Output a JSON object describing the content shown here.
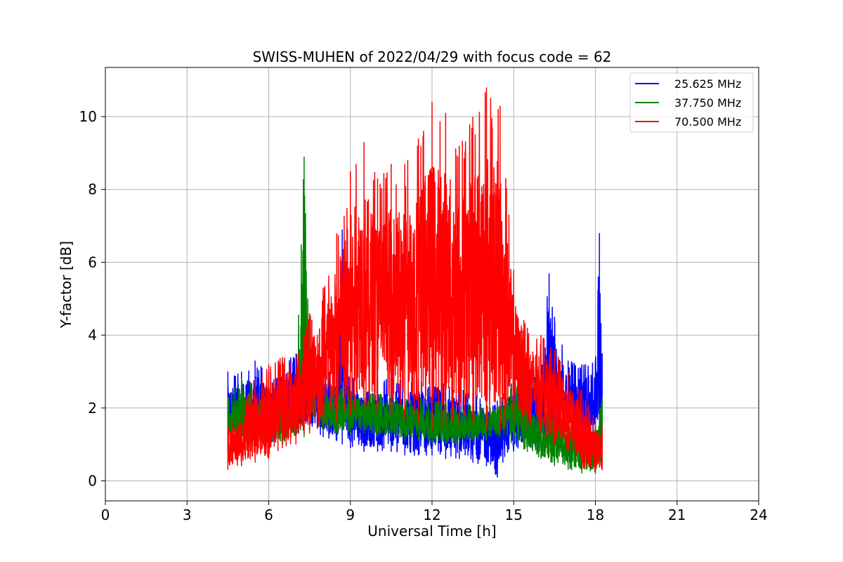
{
  "chart_data": {
    "type": "line",
    "title": "SWISS-MUHEN of 2022/04/29 with focus code = 62",
    "xlabel": "Universal Time [h]",
    "ylabel": "Y-factor [dB]",
    "xlim": [
      0,
      24
    ],
    "ylim": [
      -0.55,
      11.35
    ],
    "xticks": [
      0,
      3,
      6,
      9,
      12,
      15,
      18,
      21,
      24
    ],
    "yticks": [
      0,
      2,
      4,
      6,
      8,
      10
    ],
    "grid": true,
    "legend_position": "top-right",
    "series": [
      {
        "name": "25.625 MHz",
        "color": "#0000ff",
        "x": [
          4.5,
          5.0,
          5.5,
          6.0,
          6.5,
          7.0,
          7.3,
          7.5,
          8.0,
          8.5,
          8.7,
          9.0,
          9.5,
          10.0,
          10.5,
          11.0,
          11.5,
          12.0,
          12.5,
          13.0,
          13.5,
          14.0,
          14.4,
          14.6,
          15.0,
          15.5,
          16.0,
          16.3,
          16.5,
          17.0,
          17.5,
          18.0,
          18.15,
          18.25
        ],
        "min": [
          0.8,
          1.0,
          1.0,
          1.0,
          1.2,
          1.3,
          1.4,
          1.4,
          1.2,
          1.1,
          1.0,
          0.9,
          0.8,
          0.8,
          0.8,
          0.7,
          0.7,
          0.7,
          0.6,
          0.6,
          0.5,
          0.4,
          0.1,
          0.5,
          0.8,
          0.9,
          0.9,
          1.0,
          1.1,
          1.1,
          1.2,
          1.2,
          1.3,
          1.4
        ],
        "max": [
          3.0,
          3.0,
          3.3,
          3.0,
          3.3,
          3.5,
          3.4,
          3.5,
          3.2,
          3.0,
          6.9,
          2.9,
          2.8,
          2.8,
          2.8,
          2.8,
          2.8,
          3.1,
          2.8,
          2.6,
          2.4,
          2.3,
          2.2,
          2.4,
          2.9,
          3.0,
          3.5,
          5.7,
          4.5,
          3.3,
          3.2,
          3.3,
          6.8,
          3.5
        ]
      },
      {
        "name": "37.750 MHz",
        "color": "#008000",
        "x": [
          4.5,
          5.0,
          5.5,
          6.0,
          6.5,
          7.0,
          7.3,
          7.5,
          8.0,
          8.5,
          9.0,
          9.5,
          10.0,
          10.5,
          11.0,
          11.5,
          12.0,
          12.5,
          13.0,
          13.5,
          14.0,
          14.5,
          15.0,
          15.5,
          16.0,
          16.5,
          17.0,
          17.5,
          18.0,
          18.25
        ],
        "min": [
          1.0,
          1.0,
          1.0,
          0.9,
          1.0,
          1.1,
          1.2,
          1.6,
          1.4,
          1.3,
          1.3,
          1.3,
          1.2,
          1.2,
          1.1,
          1.1,
          1.0,
          1.0,
          1.0,
          1.1,
          1.1,
          1.2,
          1.0,
          0.8,
          0.6,
          0.4,
          0.3,
          0.2,
          0.2,
          0.5
        ],
        "max": [
          2.3,
          2.8,
          2.7,
          2.5,
          2.4,
          2.7,
          8.9,
          3.7,
          2.6,
          2.6,
          2.5,
          2.5,
          2.4,
          2.4,
          2.3,
          2.3,
          2.2,
          2.2,
          2.2,
          2.1,
          2.1,
          2.3,
          2.8,
          2.3,
          2.1,
          1.9,
          1.8,
          1.7,
          1.6,
          2.3
        ]
      },
      {
        "name": "70.500 MHz",
        "color": "#ff0000",
        "x": [
          4.5,
          5.0,
          5.5,
          6.0,
          6.5,
          7.0,
          7.5,
          8.0,
          8.5,
          9.0,
          9.5,
          10.0,
          10.5,
          11.0,
          11.5,
          12.0,
          12.5,
          13.0,
          13.5,
          14.0,
          14.5,
          15.0,
          15.5,
          16.0,
          16.5,
          17.0,
          17.5,
          18.0,
          18.25
        ],
        "min": [
          0.3,
          0.4,
          0.5,
          0.6,
          0.9,
          1.0,
          1.3,
          1.5,
          1.6,
          1.8,
          2.0,
          1.9,
          1.8,
          1.7,
          1.6,
          1.4,
          1.5,
          1.5,
          1.6,
          1.4,
          1.3,
          1.6,
          1.4,
          1.3,
          1.0,
          0.8,
          0.3,
          0.2,
          0.3
        ],
        "max": [
          1.5,
          2.0,
          2.8,
          3.2,
          3.4,
          3.5,
          4.6,
          5.3,
          6.8,
          8.5,
          9.3,
          8.3,
          8.7,
          8.7,
          9.4,
          10.4,
          10.1,
          9.2,
          10.0,
          10.8,
          10.3,
          5.8,
          4.2,
          4.0,
          3.6,
          3.0,
          2.5,
          1.7,
          1.5
        ]
      }
    ]
  }
}
